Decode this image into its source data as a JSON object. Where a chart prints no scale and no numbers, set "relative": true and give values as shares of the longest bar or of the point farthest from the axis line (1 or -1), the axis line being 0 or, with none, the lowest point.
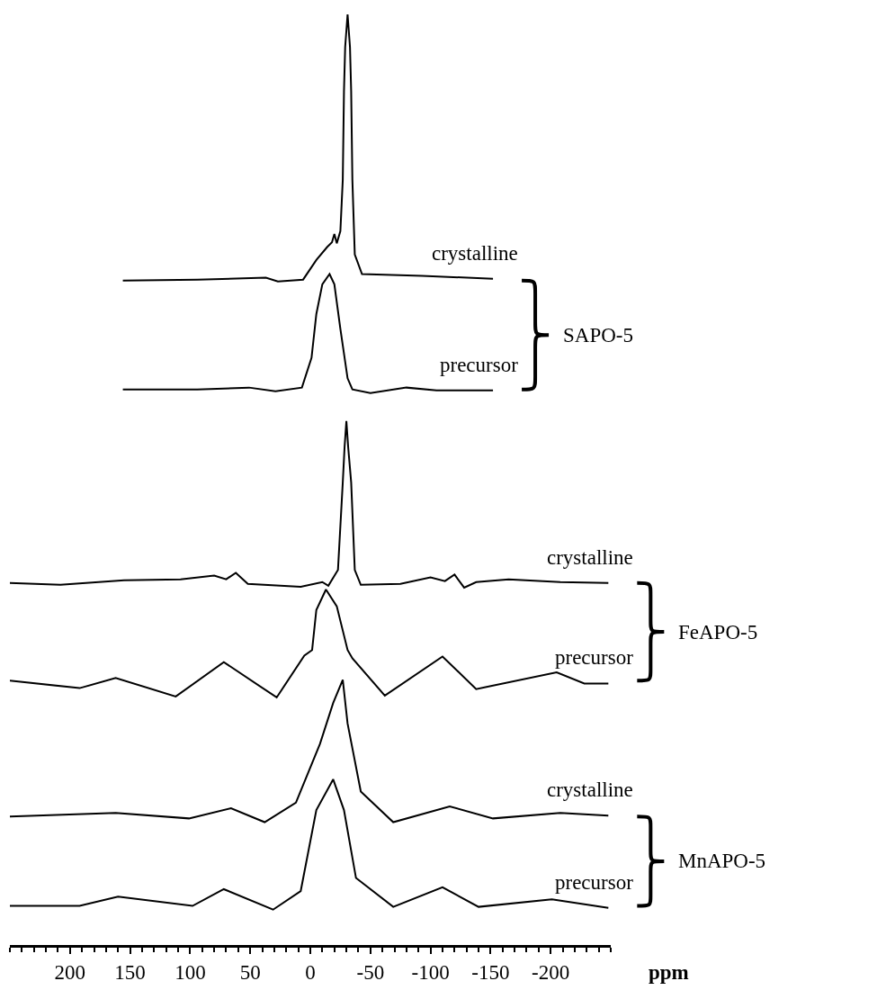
{
  "chart_data": {
    "type": "line",
    "relative": true,
    "xlabel": "ppm",
    "xlim": [
      250,
      -250
    ],
    "xticks": [
      200,
      150,
      100,
      50,
      0,
      -50,
      -100,
      -150,
      -200
    ],
    "annotations": [
      "SAPO-5",
      "FeAPO-5",
      "MnAPO-5"
    ],
    "series": [
      {
        "name": "crystalline",
        "color": "#000000",
        "x": [
          156,
          94,
          37,
          27,
          6,
          -5,
          -14,
          -18,
          -20,
          -22,
          -25,
          -27,
          -28,
          -29,
          -31,
          -33,
          -34,
          -35,
          -37,
          -43,
          -93,
          -152
        ],
        "values": [
          0.714,
          0.715,
          0.717,
          0.713,
          0.715,
          0.736,
          0.75,
          0.755,
          0.764,
          0.754,
          0.767,
          0.822,
          0.917,
          0.965,
          1.0,
          0.965,
          0.917,
          0.822,
          0.742,
          0.721,
          0.719,
          0.716
        ]
      },
      {
        "name": "precursor",
        "color": "#000000",
        "x": [
          156,
          94,
          51,
          29,
          7,
          -1,
          -5,
          -10,
          -16,
          -20,
          -25,
          -31,
          -35,
          -50,
          -80,
          -105,
          -152
        ],
        "values": [
          0.597,
          0.597,
          0.599,
          0.595,
          0.599,
          0.631,
          0.678,
          0.71,
          0.721,
          0.71,
          0.662,
          0.609,
          0.597,
          0.593,
          0.599,
          0.596,
          0.596
        ]
      },
      {
        "name": "crystalline",
        "color": "#000000",
        "x": [
          250,
          208,
          155,
          108,
          80,
          70,
          62,
          52,
          8,
          -10,
          -15,
          -23,
          -27,
          -28.5,
          -30,
          -31.5,
          -34,
          -37,
          -42,
          -75,
          -100,
          -112,
          -120,
          -128,
          -138,
          -165,
          -208,
          -248
        ],
        "values": [
          0.389,
          0.387,
          0.392,
          0.393,
          0.397,
          0.393,
          0.4,
          0.388,
          0.385,
          0.39,
          0.386,
          0.403,
          0.497,
          0.535,
          0.563,
          0.535,
          0.497,
          0.403,
          0.387,
          0.388,
          0.395,
          0.391,
          0.398,
          0.384,
          0.39,
          0.393,
          0.39,
          0.389
        ]
      },
      {
        "name": "precursor",
        "color": "#000000",
        "x": [
          250,
          192,
          162,
          112,
          72,
          28,
          5,
          -1.5,
          -5,
          -13,
          -22,
          -31,
          -35,
          -62,
          -110,
          -138,
          -205,
          -228,
          -248
        ],
        "values": [
          0.284,
          0.276,
          0.287,
          0.267,
          0.304,
          0.266,
          0.311,
          0.317,
          0.36,
          0.382,
          0.364,
          0.317,
          0.308,
          0.268,
          0.31,
          0.275,
          0.293,
          0.281,
          0.281
        ]
      },
      {
        "name": "crystalline",
        "color": "#000000",
        "x": [
          250,
          162,
          101,
          66,
          38,
          12,
          -8,
          -19,
          -27,
          -31,
          -42,
          -69,
          -116,
          -152,
          -208,
          -248
        ],
        "values": [
          0.138,
          0.142,
          0.136,
          0.147,
          0.132,
          0.153,
          0.216,
          0.26,
          0.285,
          0.238,
          0.165,
          0.132,
          0.149,
          0.136,
          0.142,
          0.139
        ]
      },
      {
        "name": "precursor",
        "color": "#000000",
        "x": [
          250,
          192,
          160,
          98,
          72,
          31,
          8,
          -5,
          -19,
          -28,
          -38,
          -69,
          -110,
          -140,
          -201,
          -248
        ],
        "values": [
          0.042,
          0.042,
          0.052,
          0.042,
          0.06,
          0.038,
          0.058,
          0.145,
          0.178,
          0.145,
          0.072,
          0.041,
          0.062,
          0.041,
          0.049,
          0.04
        ]
      }
    ]
  }
}
